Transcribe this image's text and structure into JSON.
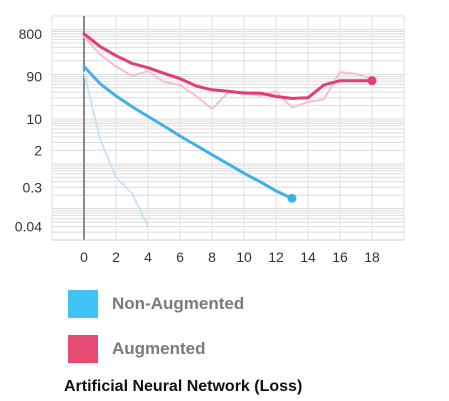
{
  "chart_data": {
    "type": "line",
    "title": "",
    "xlabel": "",
    "ylabel": "",
    "y_scale": "log",
    "ylim": [
      0.02,
      2000
    ],
    "xlim": [
      -2,
      20
    ],
    "x_ticks": [
      0,
      2,
      4,
      6,
      8,
      10,
      12,
      14,
      16,
      18
    ],
    "y_ticks": [
      {
        "value": 800,
        "label": "800"
      },
      {
        "value": 90,
        "label": "90"
      },
      {
        "value": 10,
        "label": "10"
      },
      {
        "value": 2,
        "label": "2"
      },
      {
        "value": 0.3,
        "label": "0.3"
      },
      {
        "value": 0.04,
        "label": "0.04"
      }
    ],
    "grid": true,
    "legend_position": "bottom-left",
    "series": [
      {
        "name": "Non-Augmented",
        "color": "#3db1e8",
        "x": [
          0,
          1,
          2,
          3,
          4,
          5,
          6,
          7,
          8,
          9,
          10,
          11,
          12,
          13
        ],
        "y": [
          150,
          62,
          33,
          19,
          11.5,
          7,
          4.2,
          2.6,
          1.6,
          1.0,
          0.62,
          0.4,
          0.25,
          0.17
        ]
      },
      {
        "name": "Augmented",
        "color": "#e33d72",
        "x": [
          0,
          1,
          2,
          3,
          4,
          5,
          6,
          7,
          8,
          9,
          10,
          11,
          12,
          13,
          14,
          15,
          16,
          17,
          18
        ],
        "y": [
          800,
          420,
          260,
          175,
          140,
          105,
          80,
          55,
          45,
          42,
          38,
          38,
          32,
          29,
          30,
          58,
          72,
          72,
          72
        ]
      },
      {
        "name": "Non-Augmented (raw)",
        "color": "#c3e6f6",
        "x": [
          0,
          1,
          2,
          3,
          4
        ],
        "y": [
          110,
          3.6,
          0.5,
          0.22,
          0.04
        ]
      },
      {
        "name": "Augmented (raw)",
        "color": "#f7bed1",
        "x": [
          0,
          1,
          2,
          3,
          4,
          5,
          6,
          7,
          8,
          9,
          10,
          11,
          12,
          13,
          14,
          15,
          16,
          17,
          18
        ],
        "y": [
          700,
          280,
          150,
          92,
          118,
          68,
          57,
          33,
          17,
          39,
          41,
          33,
          42,
          18,
          24,
          28,
          112,
          102,
          80
        ]
      }
    ],
    "end_markers": [
      {
        "series": "Non-Augmented",
        "x": 13,
        "y": 0.17
      },
      {
        "series": "Augmented",
        "x": 18,
        "y": 72
      }
    ]
  },
  "legend": [
    {
      "label": "Non-Augmented",
      "color": "#3fc4f5"
    },
    {
      "label": "Augmented",
      "color": "#e64a73"
    }
  ],
  "caption": "Artificial Neural Network (Loss)"
}
